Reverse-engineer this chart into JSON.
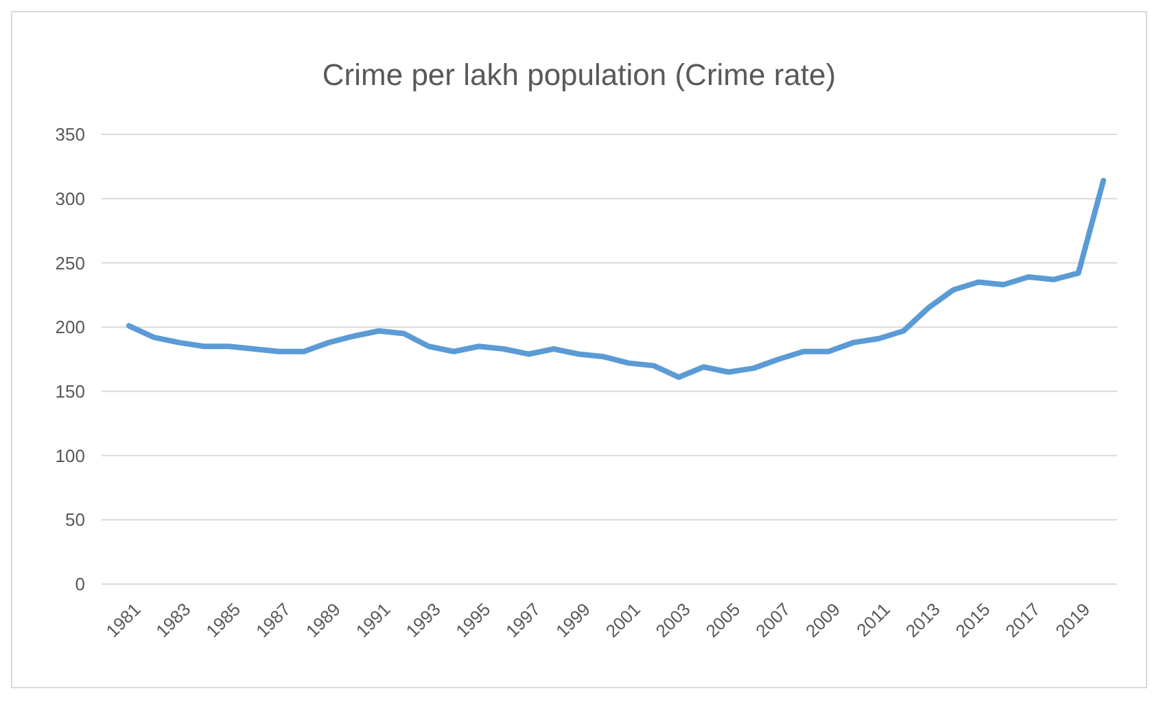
{
  "chart_data": {
    "type": "line",
    "title": "Crime per lakh population (Crime rate)",
    "categories": [
      "1981",
      null,
      "1983",
      null,
      "1985",
      null,
      "1987",
      null,
      "1989",
      null,
      "1991",
      null,
      "1993",
      null,
      "1995",
      null,
      "1997",
      null,
      "1999",
      null,
      "2001",
      null,
      "2003",
      null,
      "2005",
      null,
      "2007",
      null,
      "2009",
      null,
      "2011",
      null,
      "2013",
      null,
      "2015",
      null,
      "2017",
      null,
      "2019",
      null
    ],
    "series": [
      {
        "color": "#5b9bd5",
        "values": [
          201,
          192,
          188,
          185,
          185,
          183,
          181,
          181,
          188,
          193,
          197,
          195,
          185,
          181,
          185,
          183,
          179,
          183,
          179,
          177,
          172,
          170,
          161,
          169,
          165,
          168,
          175,
          181,
          181,
          188,
          191,
          197,
          215,
          229,
          235,
          233,
          239,
          237,
          242,
          314
        ]
      }
    ],
    "ylim": [
      0,
      350
    ],
    "yticks": [
      0,
      50,
      100,
      150,
      200,
      250,
      300,
      350
    ],
    "grid": "y",
    "marker": "none",
    "line_style": "solid"
  }
}
